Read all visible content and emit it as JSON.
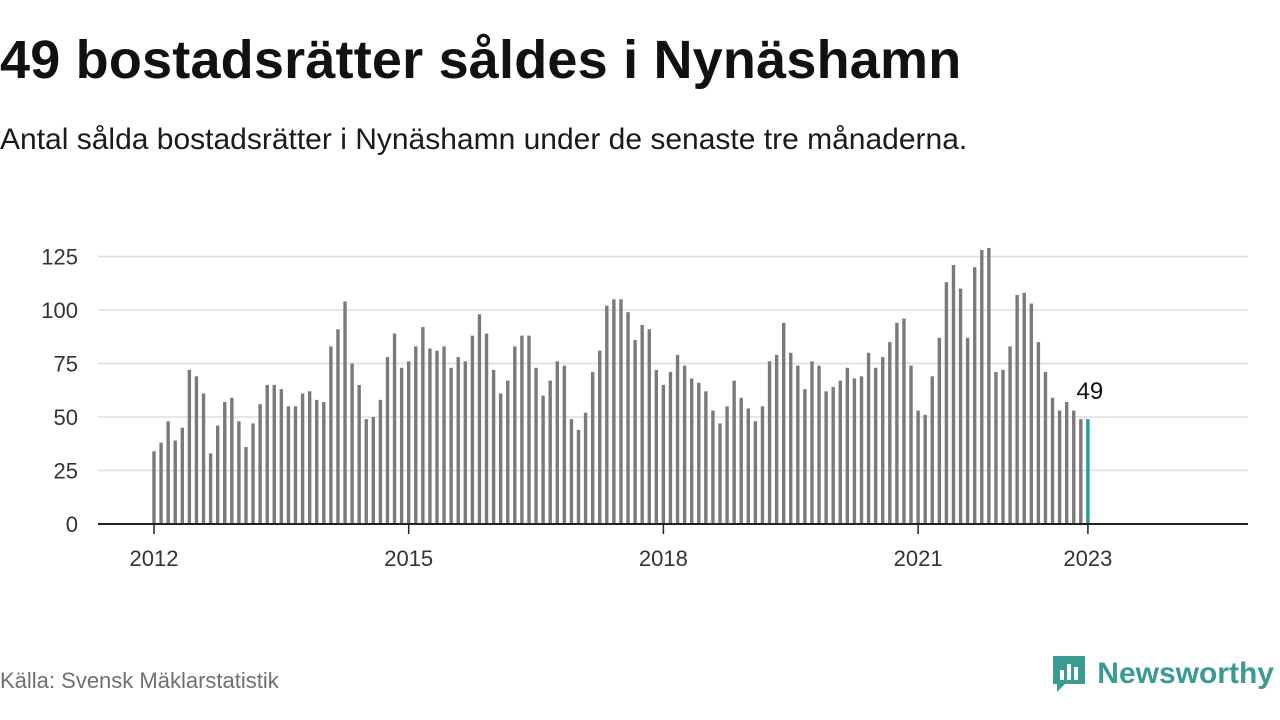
{
  "title": "49 bostadsrätter såldes i Nynäshamn",
  "subtitle": "Antal sålda bostadsrätter i Nynäshamn under de senaste tre månaderna.",
  "source": "Källa: Svensk Mäklarstatistik",
  "brand": {
    "name": "Newsworthy",
    "logo_icon": "newsworthy-logo-icon"
  },
  "colors": {
    "bar": "#7a7a7a",
    "highlight": "#1f9e93",
    "grid": "#dddddd",
    "axis": "#222222",
    "brand": "#3b9a92"
  },
  "chart_data": {
    "type": "bar",
    "x_axis_ticks": [
      "2012",
      "2015",
      "2018",
      "2021",
      "2023"
    ],
    "y_axis_ticks": [
      "0",
      "25",
      "50",
      "75",
      "100",
      "125"
    ],
    "ylim": [
      0,
      135
    ],
    "grid": true,
    "first_period": "2012-01",
    "last_period": "2023-01",
    "highlight_label": "49",
    "values": [
      34,
      38,
      48,
      39,
      45,
      72,
      69,
      61,
      33,
      46,
      57,
      59,
      48,
      36,
      47,
      56,
      65,
      65,
      63,
      55,
      55,
      61,
      62,
      58,
      57,
      83,
      91,
      104,
      75,
      65,
      49,
      50,
      58,
      78,
      89,
      73,
      76,
      83,
      92,
      82,
      81,
      83,
      73,
      78,
      76,
      88,
      98,
      89,
      72,
      61,
      67,
      83,
      88,
      88,
      73,
      60,
      67,
      76,
      74,
      49,
      44,
      52,
      71,
      81,
      102,
      105,
      105,
      99,
      86,
      93,
      91,
      72,
      65,
      71,
      79,
      74,
      68,
      66,
      62,
      53,
      47,
      55,
      67,
      59,
      54,
      48,
      55,
      76,
      79,
      94,
      80,
      74,
      63,
      76,
      74,
      62,
      64,
      67,
      73,
      68,
      69,
      80,
      73,
      78,
      85,
      94,
      96,
      74,
      53,
      51,
      69,
      87,
      113,
      121,
      110,
      87,
      120,
      128,
      129,
      71,
      72,
      83,
      107,
      108,
      103,
      85,
      71,
      59,
      53,
      57,
      53,
      49,
      49
    ]
  }
}
